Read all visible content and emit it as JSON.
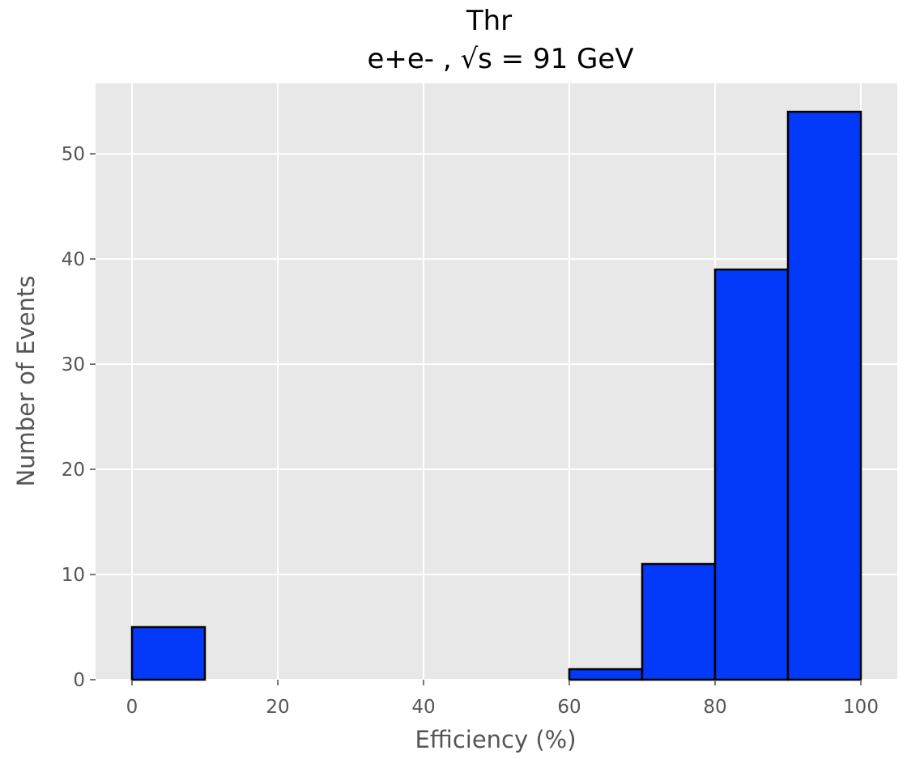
{
  "chart_data": {
    "type": "bar",
    "title": "Thr",
    "subtitle": "e+e- , √s = 91 GeV",
    "xlabel": "Efficiency (%)",
    "ylabel": "Number of Events",
    "bin_edges": [
      0,
      10,
      20,
      30,
      40,
      50,
      60,
      70,
      80,
      90,
      100
    ],
    "values": [
      5,
      0,
      0,
      0,
      0,
      0,
      1,
      11,
      39,
      54
    ],
    "xlim": [
      -5,
      105
    ],
    "ylim": [
      0,
      56.7
    ],
    "x_ticks": [
      0,
      20,
      40,
      60,
      80,
      100
    ],
    "y_ticks": [
      0,
      10,
      20,
      30,
      40,
      50
    ],
    "grid": true,
    "colors": {
      "bar_fill": "#0339f8",
      "bar_edge": "#000000",
      "plot_background": "#e8e8e8",
      "grid": "#ffffff"
    }
  }
}
